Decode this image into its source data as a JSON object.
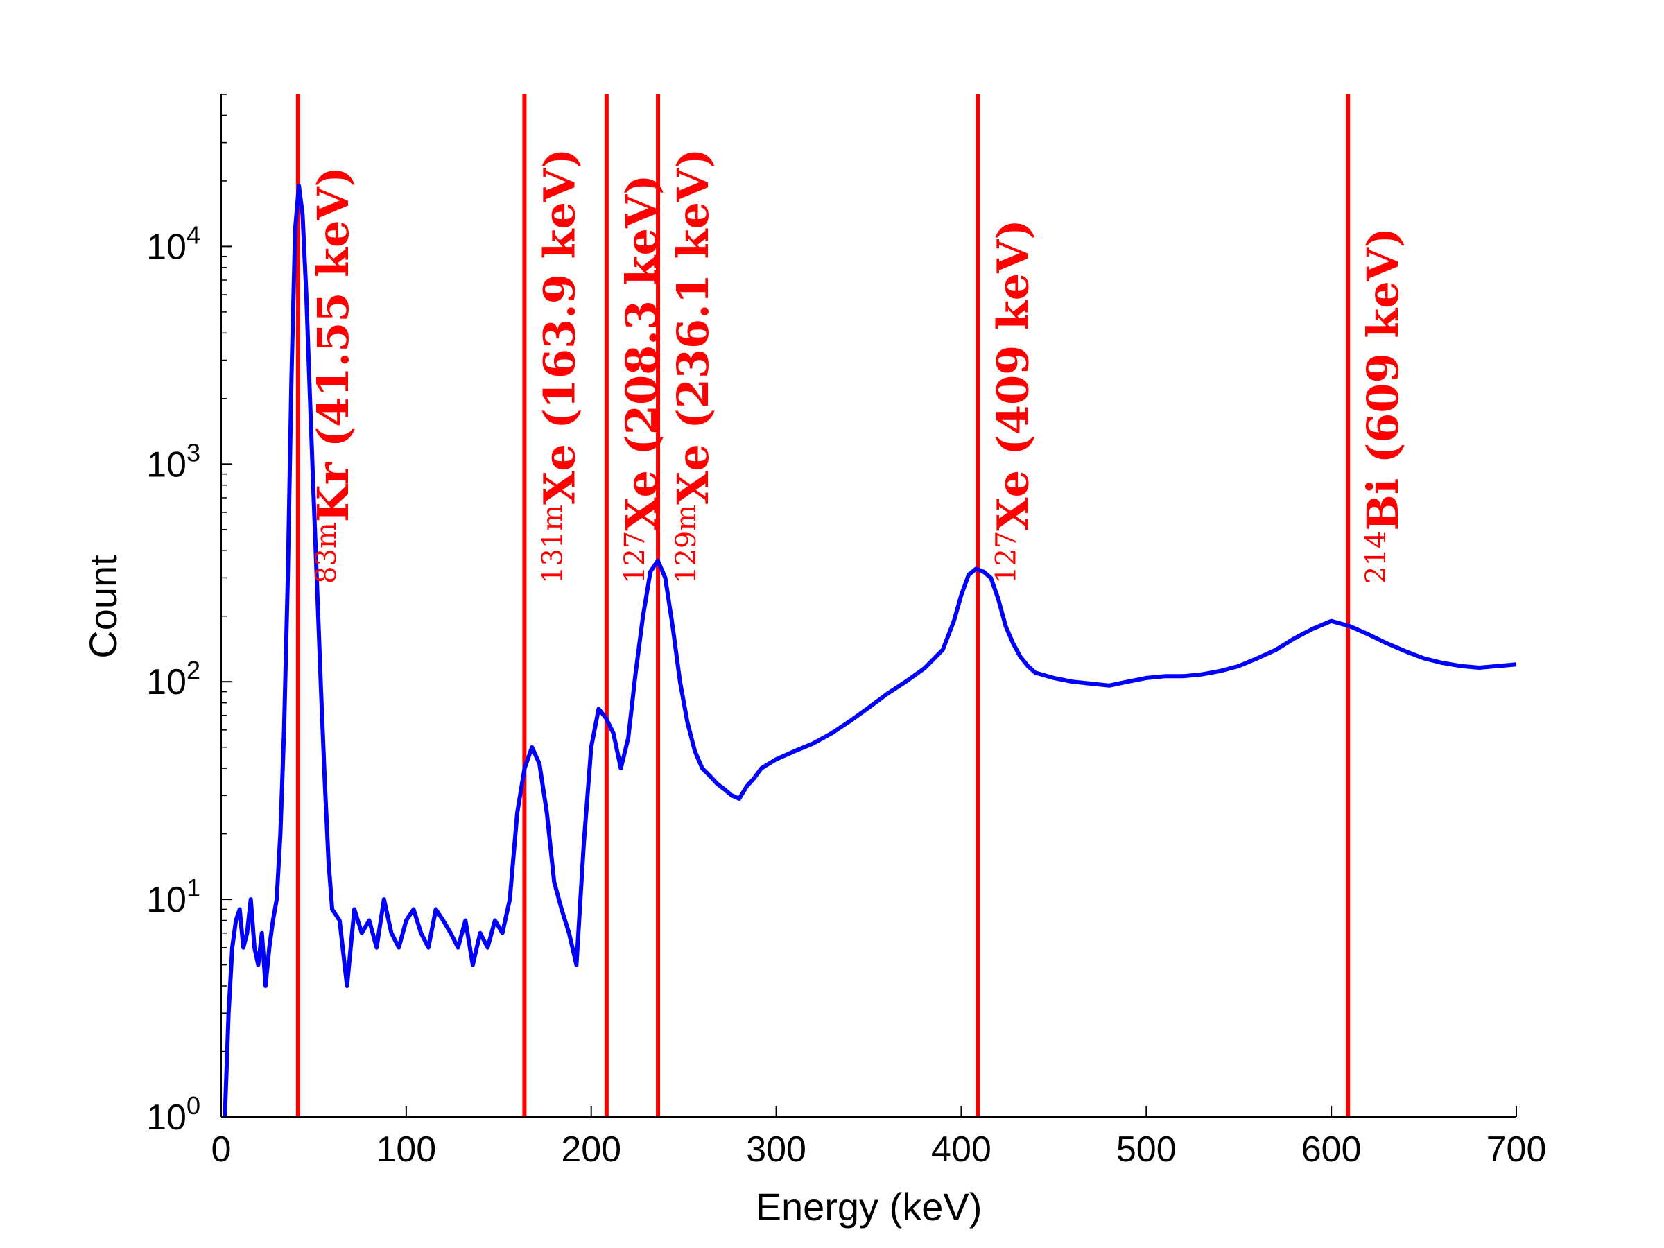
{
  "chart_data": {
    "type": "line",
    "title": "",
    "xlabel": "Energy (keV)",
    "ylabel": "Count",
    "xlim": [
      0,
      700
    ],
    "ylim": [
      1,
      50000
    ],
    "yscale": "log",
    "grid": false,
    "x_ticks": [
      0,
      100,
      200,
      300,
      400,
      500,
      600,
      700
    ],
    "x_tick_labels": [
      "0",
      "100",
      "200",
      "300",
      "400",
      "500",
      "600",
      "700"
    ],
    "y_ticks": [
      1,
      10,
      100,
      1000,
      10000
    ],
    "y_tick_labels": [
      {
        "base": "10",
        "exp": "0"
      },
      {
        "base": "10",
        "exp": "1"
      },
      {
        "base": "10",
        "exp": "2"
      },
      {
        "base": "10",
        "exp": "3"
      },
      {
        "base": "10",
        "exp": "4"
      }
    ],
    "series": [
      {
        "color": "#0000ff",
        "x": [
          2,
          4,
          6,
          8,
          10,
          12,
          14,
          16,
          18,
          20,
          22,
          24,
          26,
          28,
          30,
          32,
          34,
          36,
          38,
          40,
          42,
          44,
          46,
          48,
          50,
          52,
          54,
          56,
          58,
          60,
          64,
          68,
          72,
          76,
          80,
          84,
          88,
          92,
          96,
          100,
          104,
          108,
          112,
          116,
          120,
          124,
          128,
          132,
          136,
          140,
          144,
          148,
          152,
          156,
          160,
          164,
          168,
          172,
          176,
          180,
          184,
          188,
          192,
          196,
          200,
          204,
          208,
          212,
          216,
          220,
          224,
          228,
          232,
          236,
          240,
          244,
          248,
          252,
          256,
          260,
          264,
          268,
          272,
          276,
          280,
          284,
          288,
          292,
          296,
          300,
          310,
          320,
          330,
          340,
          350,
          360,
          370,
          380,
          390,
          396,
          400,
          404,
          408,
          412,
          416,
          420,
          424,
          428,
          432,
          436,
          440,
          450,
          460,
          470,
          480,
          490,
          500,
          510,
          520,
          530,
          540,
          550,
          560,
          570,
          580,
          590,
          600,
          610,
          620,
          630,
          640,
          650,
          660,
          670,
          680,
          690,
          700
        ],
        "y": [
          1,
          3,
          6,
          8,
          9,
          6,
          7,
          10,
          6,
          5,
          7,
          4,
          6,
          8,
          10,
          20,
          60,
          300,
          2500,
          12000,
          19000,
          14000,
          6000,
          2000,
          700,
          250,
          90,
          35,
          15,
          9,
          8,
          4,
          9,
          7,
          8,
          6,
          10,
          7,
          6,
          8,
          9,
          7,
          6,
          9,
          8,
          7,
          6,
          8,
          5,
          7,
          6,
          8,
          7,
          10,
          25,
          40,
          50,
          42,
          25,
          12,
          9,
          7,
          5,
          18,
          50,
          75,
          68,
          58,
          40,
          55,
          110,
          200,
          320,
          360,
          300,
          180,
          100,
          65,
          48,
          40,
          37,
          34,
          32,
          30,
          29,
          33,
          36,
          40,
          42,
          44,
          48,
          52,
          58,
          66,
          76,
          88,
          100,
          115,
          140,
          190,
          250,
          310,
          330,
          320,
          300,
          240,
          180,
          150,
          130,
          118,
          110,
          104,
          100,
          98,
          96,
          100,
          104,
          106,
          106,
          108,
          112,
          118,
          128,
          140,
          158,
          175,
          190,
          180,
          165,
          150,
          138,
          128,
          122,
          118,
          116,
          118,
          120
        ]
      }
    ],
    "annotations": [
      {
        "energy": 41.55,
        "iso": "83m",
        "text": "Kr (41.55 keV)"
      },
      {
        "energy": 163.9,
        "iso": "131m",
        "text": "Xe (163.9 keV)"
      },
      {
        "energy": 208.3,
        "iso": "127",
        "text": "Xe (208.3 keV)"
      },
      {
        "energy": 236.1,
        "iso": "129m",
        "text": "Xe (236.1 keV)"
      },
      {
        "energy": 409,
        "iso": "127",
        "text": "Xe (409 keV)"
      },
      {
        "energy": 609,
        "iso": "214",
        "text": "Bi (609 keV)"
      }
    ],
    "annotation_color": "#ff0000"
  }
}
